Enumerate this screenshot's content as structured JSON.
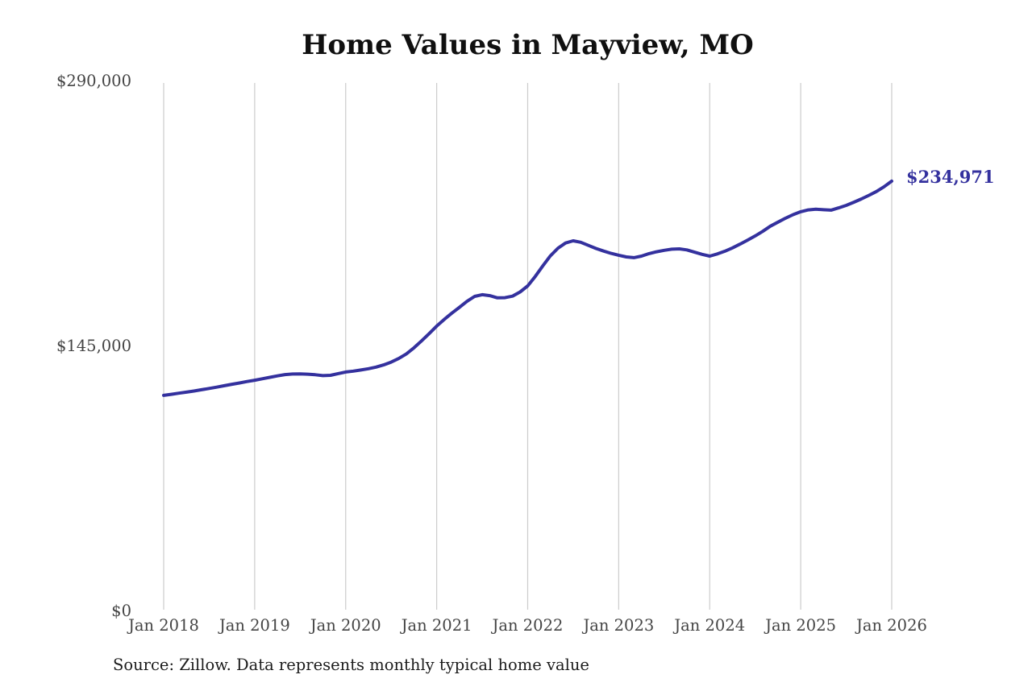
{
  "chart_data": {
    "type": "line",
    "title": "Home Values in Mayview, MO",
    "source": "Source: Zillow. Data represents monthly typical home value",
    "end_label": "$234,971",
    "xlabel": "",
    "ylabel": "",
    "ylim": [
      0,
      290000
    ],
    "grid": "vertical-only",
    "legend": "none",
    "y_ticks": [
      {
        "label": "$290,000",
        "value": 290000
      },
      {
        "label": "$145,000",
        "value": 145000
      },
      {
        "label": "$0",
        "value": 0
      }
    ],
    "x_ticks": [
      "Jan 2018",
      "Jan 2019",
      "Jan 2020",
      "Jan 2021",
      "Jan 2022",
      "Jan 2023",
      "Jan 2024",
      "Jan 2025",
      "Jan 2026"
    ],
    "series_name": "Typical home value (monthly)",
    "start_month": "2018-01",
    "interval": "monthly",
    "values": [
      117700,
      118300,
      118900,
      119500,
      120100,
      120800,
      121500,
      122200,
      123000,
      123800,
      124500,
      125300,
      126000,
      126800,
      127600,
      128400,
      129100,
      129400,
      129500,
      129300,
      129000,
      128500,
      128700,
      129600,
      130500,
      131000,
      131600,
      132300,
      133200,
      134400,
      135900,
      137900,
      140400,
      143700,
      147500,
      151500,
      155600,
      159300,
      162700,
      165900,
      169200,
      171900,
      172800,
      172300,
      171100,
      171200,
      172000,
      174300,
      177600,
      182800,
      188600,
      194100,
      198300,
      201100,
      202300,
      201500,
      199800,
      198100,
      196700,
      195400,
      194400,
      193500,
      193100,
      193900,
      195300,
      196300,
      197100,
      197700,
      197900,
      197300,
      196100,
      194900,
      193900,
      195100,
      196600,
      198400,
      200500,
      202700,
      205000,
      207500,
      210300,
      212500,
      214700,
      216600,
      218200,
      219200,
      219600,
      219300,
      219100,
      220300,
      221700,
      223400,
      225200,
      227200,
      229300,
      231900,
      234971
    ],
    "colors": {
      "line": "#34319e",
      "grid": "#cccccc",
      "axis_label": "#444444",
      "title": "#101010",
      "source_text": "#1c1c1c"
    }
  }
}
